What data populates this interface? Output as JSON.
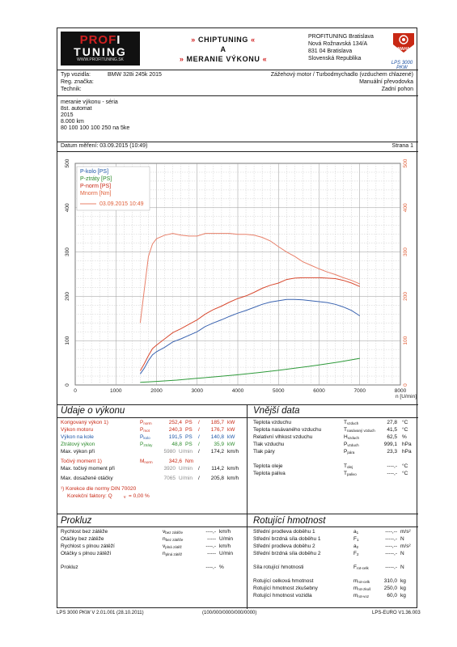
{
  "header": {
    "logo_line1a": "PROF",
    "logo_line1b": "I",
    "logo_line2": "TUNING",
    "logo_url": "WWW.PROFITUNING.SK",
    "title_line1": "CHIPTUNING",
    "title_line2": "A",
    "title_line3": "MERANIE VÝKONU",
    "arrow_left": "»",
    "arrow_right": "«",
    "address": [
      "PROFITUNING Bratislava",
      "Nová Rožnavská 134/A",
      "831 04 Bratislava",
      "Slovenská Republika"
    ],
    "maha_logo_text": "MAHA",
    "lps_label": "LPS 3000 PKW"
  },
  "vehicle": {
    "type_label": "Typ vozidla:",
    "type_value": "BMW 328i 245k 2015",
    "reg_label": "Reg. značka:",
    "tech_label": "Technik:",
    "engine": "Zážehový motor / Turbodmychadlo (vzduchem chlazené)",
    "gearbox": "Manuální převodovka",
    "drive": "Zadní pohon"
  },
  "notes": [
    "meranie výkonu - séria",
    "8st. automat",
    "2015",
    "8.000 km",
    "80 100 100 100 250 na 5ke"
  ],
  "measure": {
    "date": "Datum měření: 03.09.2015 (10:49)",
    "page": "Strana 1"
  },
  "chart_data": {
    "type": "line",
    "xlabel": "n [U/min]",
    "xlim": [
      0,
      8000
    ],
    "ylim_left": [
      0,
      500
    ],
    "ylim_right": [
      0,
      500
    ],
    "x_ticks": [
      0,
      1000,
      2000,
      3000,
      4000,
      5000,
      6000,
      7000,
      8000
    ],
    "y_ticks": [
      0,
      100,
      200,
      300,
      400,
      500
    ],
    "legend": {
      "position": "top-left",
      "entries": [
        "P-kolo [PS]",
        "P-ztráty [PS]",
        "P-norm [PS]",
        "Mnorm [Nm]"
      ],
      "date": "03.09.2015 10:49"
    },
    "series": [
      {
        "name": "P-kolo [PS]",
        "color": "#3a63b0",
        "x": [
          1600,
          1700,
          1800,
          1900,
          2000,
          2200,
          2400,
          2600,
          2800,
          3000,
          3200,
          3400,
          3600,
          3800,
          4000,
          4200,
          4400,
          4600,
          4800,
          5000,
          5200,
          5400,
          5600,
          5800,
          6000,
          6200,
          6400,
          6600,
          6800,
          7000
        ],
        "y": [
          25,
          38,
          55,
          68,
          75,
          85,
          97,
          104,
          112,
          120,
          132,
          140,
          147,
          155,
          162,
          168,
          175,
          182,
          187,
          190,
          193,
          193,
          192,
          190,
          188,
          186,
          182,
          176,
          168,
          156
        ]
      },
      {
        "name": "P-ztráty [PS]",
        "color": "#2e9a3a",
        "x": [
          1600,
          2000,
          2500,
          3000,
          3500,
          4000,
          4500,
          5000,
          5500,
          6000,
          6500,
          7000
        ],
        "y": [
          6,
          8,
          11,
          15,
          19,
          23,
          28,
          33,
          39,
          45,
          52,
          60
        ]
      },
      {
        "name": "P-norm [PS]",
        "color": "#d84a30",
        "x": [
          1600,
          1700,
          1800,
          1900,
          2000,
          2200,
          2400,
          2600,
          2800,
          3000,
          3200,
          3400,
          3600,
          3800,
          4000,
          4200,
          4400,
          4600,
          4800,
          5000,
          5200,
          5400,
          5600,
          5800,
          6000,
          6200,
          6400,
          6600,
          6800,
          7000
        ],
        "y": [
          32,
          48,
          66,
          82,
          90,
          104,
          118,
          127,
          137,
          147,
          160,
          170,
          178,
          187,
          195,
          201,
          209,
          218,
          225,
          230,
          238,
          241,
          242,
          242,
          242,
          241,
          240,
          236,
          230,
          222
        ]
      },
      {
        "name": "Mnorm [Nm]",
        "color": "#e8806a",
        "x": [
          1600,
          1700,
          1800,
          1900,
          2000,
          2200,
          2400,
          2600,
          2800,
          3000,
          3200,
          3400,
          3600,
          3800,
          4000,
          4200,
          4400,
          4600,
          4800,
          5000,
          5200,
          5400,
          5600,
          5800,
          6000,
          6200,
          6400,
          6600,
          6800,
          7000
        ],
        "y": [
          140,
          215,
          290,
          318,
          330,
          338,
          342,
          338,
          336,
          336,
          342,
          342,
          342,
          342,
          340,
          340,
          338,
          333,
          325,
          312,
          300,
          290,
          278,
          270,
          262,
          255,
          249,
          242,
          236,
          228
        ]
      }
    ]
  },
  "udaje": {
    "title": "Údaje o výkonu",
    "rows": [
      {
        "label": "Korigovaný výkon",
        "note": "1)",
        "sym": "P",
        "sub": "norm",
        "v1": "252,4",
        "u1": "PS",
        "v2": "185,7",
        "u2": "kW",
        "color": "#c82814"
      },
      {
        "label": "Výkon motoru",
        "note": "",
        "sym": "P",
        "sub": "mot",
        "v1": "240,3",
        "u1": "PS",
        "v2": "176,7",
        "u2": "kW",
        "color": "#c82814"
      },
      {
        "label": "Výkon na kole",
        "note": "",
        "sym": "P",
        "sub": "kolo",
        "v1": "191,5",
        "u1": "PS",
        "v2": "140,8",
        "u2": "kW",
        "color": "#1c55a6"
      },
      {
        "label": "Ztrátový výkon",
        "note": "",
        "sym": "P",
        "sub": "ztráty",
        "v1": "48,8",
        "u1": "PS",
        "v2": "35,9",
        "u2": "kW",
        "color": "#2a8a2a"
      }
    ],
    "max_at_label": "Max. výkon při",
    "max_at_rpm": "5980",
    "max_at_rpm_unit": "U/min",
    "max_at_speed": "174,2",
    "max_at_speed_unit": "km/h",
    "torque_label": "Točivý moment",
    "torque_note": "1)",
    "torque_sym": "M",
    "torque_sub": "norm",
    "torque_val": "342,6",
    "torque_unit": "Nm",
    "max_torque_label": "Max. točivý moment při",
    "max_torque_rpm": "3920",
    "max_torque_rpm_unit": "U/min",
    "max_torque_speed": "114,2",
    "max_torque_speed_unit": "km/h",
    "max_rev_label": "Max. dosažené otáčky",
    "max_rev_rpm": "7065",
    "max_rev_rpm_unit": "U/min",
    "max_rev_speed": "205,8",
    "max_rev_speed_unit": "km/h",
    "din_label": "¹) Korekce dle normy DIN 70020",
    "factor_label": "Korekční faktory: Q",
    "factor_sub": "v",
    "factor_value": "= 0,00 %"
  },
  "vnejsi": {
    "title": "Vnější data",
    "rows1": [
      {
        "label": "Teplota vzduchu",
        "sym": "T",
        "sub": "vzduch",
        "val": "27,8",
        "unit": "°C"
      },
      {
        "label": "Teplota nasávaného vzduchu",
        "sym": "T",
        "sub": "nasávaný vzduch",
        "val": "41,5",
        "unit": "°C"
      },
      {
        "label": "Relativní vlhkost vzduchu",
        "sym": "H",
        "sub": "vzduch",
        "val": "62,5",
        "unit": "%"
      },
      {
        "label": "Tlak vzduchu",
        "sym": "P",
        "sub": "vzduch",
        "val": "999,1",
        "unit": "hPa"
      },
      {
        "label": "Tlak páry",
        "sym": "P",
        "sub": "pára",
        "val": "23,3",
        "unit": "hPa"
      }
    ],
    "rows2": [
      {
        "label": "Teplota oleje",
        "sym": "T",
        "sub": "olej",
        "val": "----,-",
        "unit": "°C"
      },
      {
        "label": "Teplota paliva",
        "sym": "T",
        "sub": "palivo",
        "val": "----,-",
        "unit": "°C"
      }
    ]
  },
  "prokluz": {
    "title": "Prokluz",
    "rows": [
      {
        "label": "Rychlost bez zátěže",
        "sym": "v",
        "sub": "bez zátěže",
        "val": "----,-",
        "unit": "km/h"
      },
      {
        "label": "Otáčky bez zátěže",
        "sym": "n",
        "sub": "bez zátěže",
        "val": "-----",
        "unit": "U/min"
      },
      {
        "label": "Rychlost s plnou zátěží",
        "sym": "v",
        "sub": "plná zátěž",
        "val": "----,-",
        "unit": "km/h"
      },
      {
        "label": "Otáčky s plnou zátěží",
        "sym": "n",
        "sub": "plná zátěž",
        "val": "-----",
        "unit": "U/min"
      }
    ],
    "prokluz_label": "Prokluz",
    "prokluz_val": "----,-",
    "prokluz_unit": "%"
  },
  "rotujici": {
    "title": "Rotující hmotnost",
    "rows": [
      {
        "label": "Střední prodleva doběhu 1",
        "sym": "a",
        "sub": "1",
        "val": "----,--",
        "unit": "m/s²"
      },
      {
        "label": "Střední brzdná síla doběhu 1",
        "sym": "F",
        "sub": "1",
        "val": "-----,-",
        "unit": "N"
      },
      {
        "label": "Střední prodleva doběhu 2",
        "sym": "a",
        "sub": "2",
        "val": "----,--",
        "unit": "m/s²"
      },
      {
        "label": "Střední brzdná síla doběhu 2",
        "sym": "F",
        "sub": "2",
        "val": "-----,-",
        "unit": "N"
      }
    ],
    "sila_label": "Síla rotující hmotnosti",
    "sila_sym": "F",
    "sila_sub": "rot-celk",
    "sila_val": "-----,-",
    "sila_unit": "N",
    "rows2": [
      {
        "label": "Rotující celková hmotnost",
        "sym": "m",
        "sub": "rot-celk",
        "val": "310,0",
        "unit": "kg"
      },
      {
        "label": "Rotující hmotnost zkušebny",
        "sym": "m",
        "sub": "rot-zkuš",
        "val": "250,0",
        "unit": "kg"
      },
      {
        "label": "Rotující hmotnost vozidla",
        "sym": "m",
        "sub": "rot-voz",
        "val": "60,0",
        "unit": "kg"
      }
    ]
  },
  "footer": {
    "left": "LPS 3000 PKW V 2.01.001 (28.10.2011)",
    "mid": "(100/000/0000/000/0000)",
    "right": "LPS-EURO V1.36.003"
  }
}
